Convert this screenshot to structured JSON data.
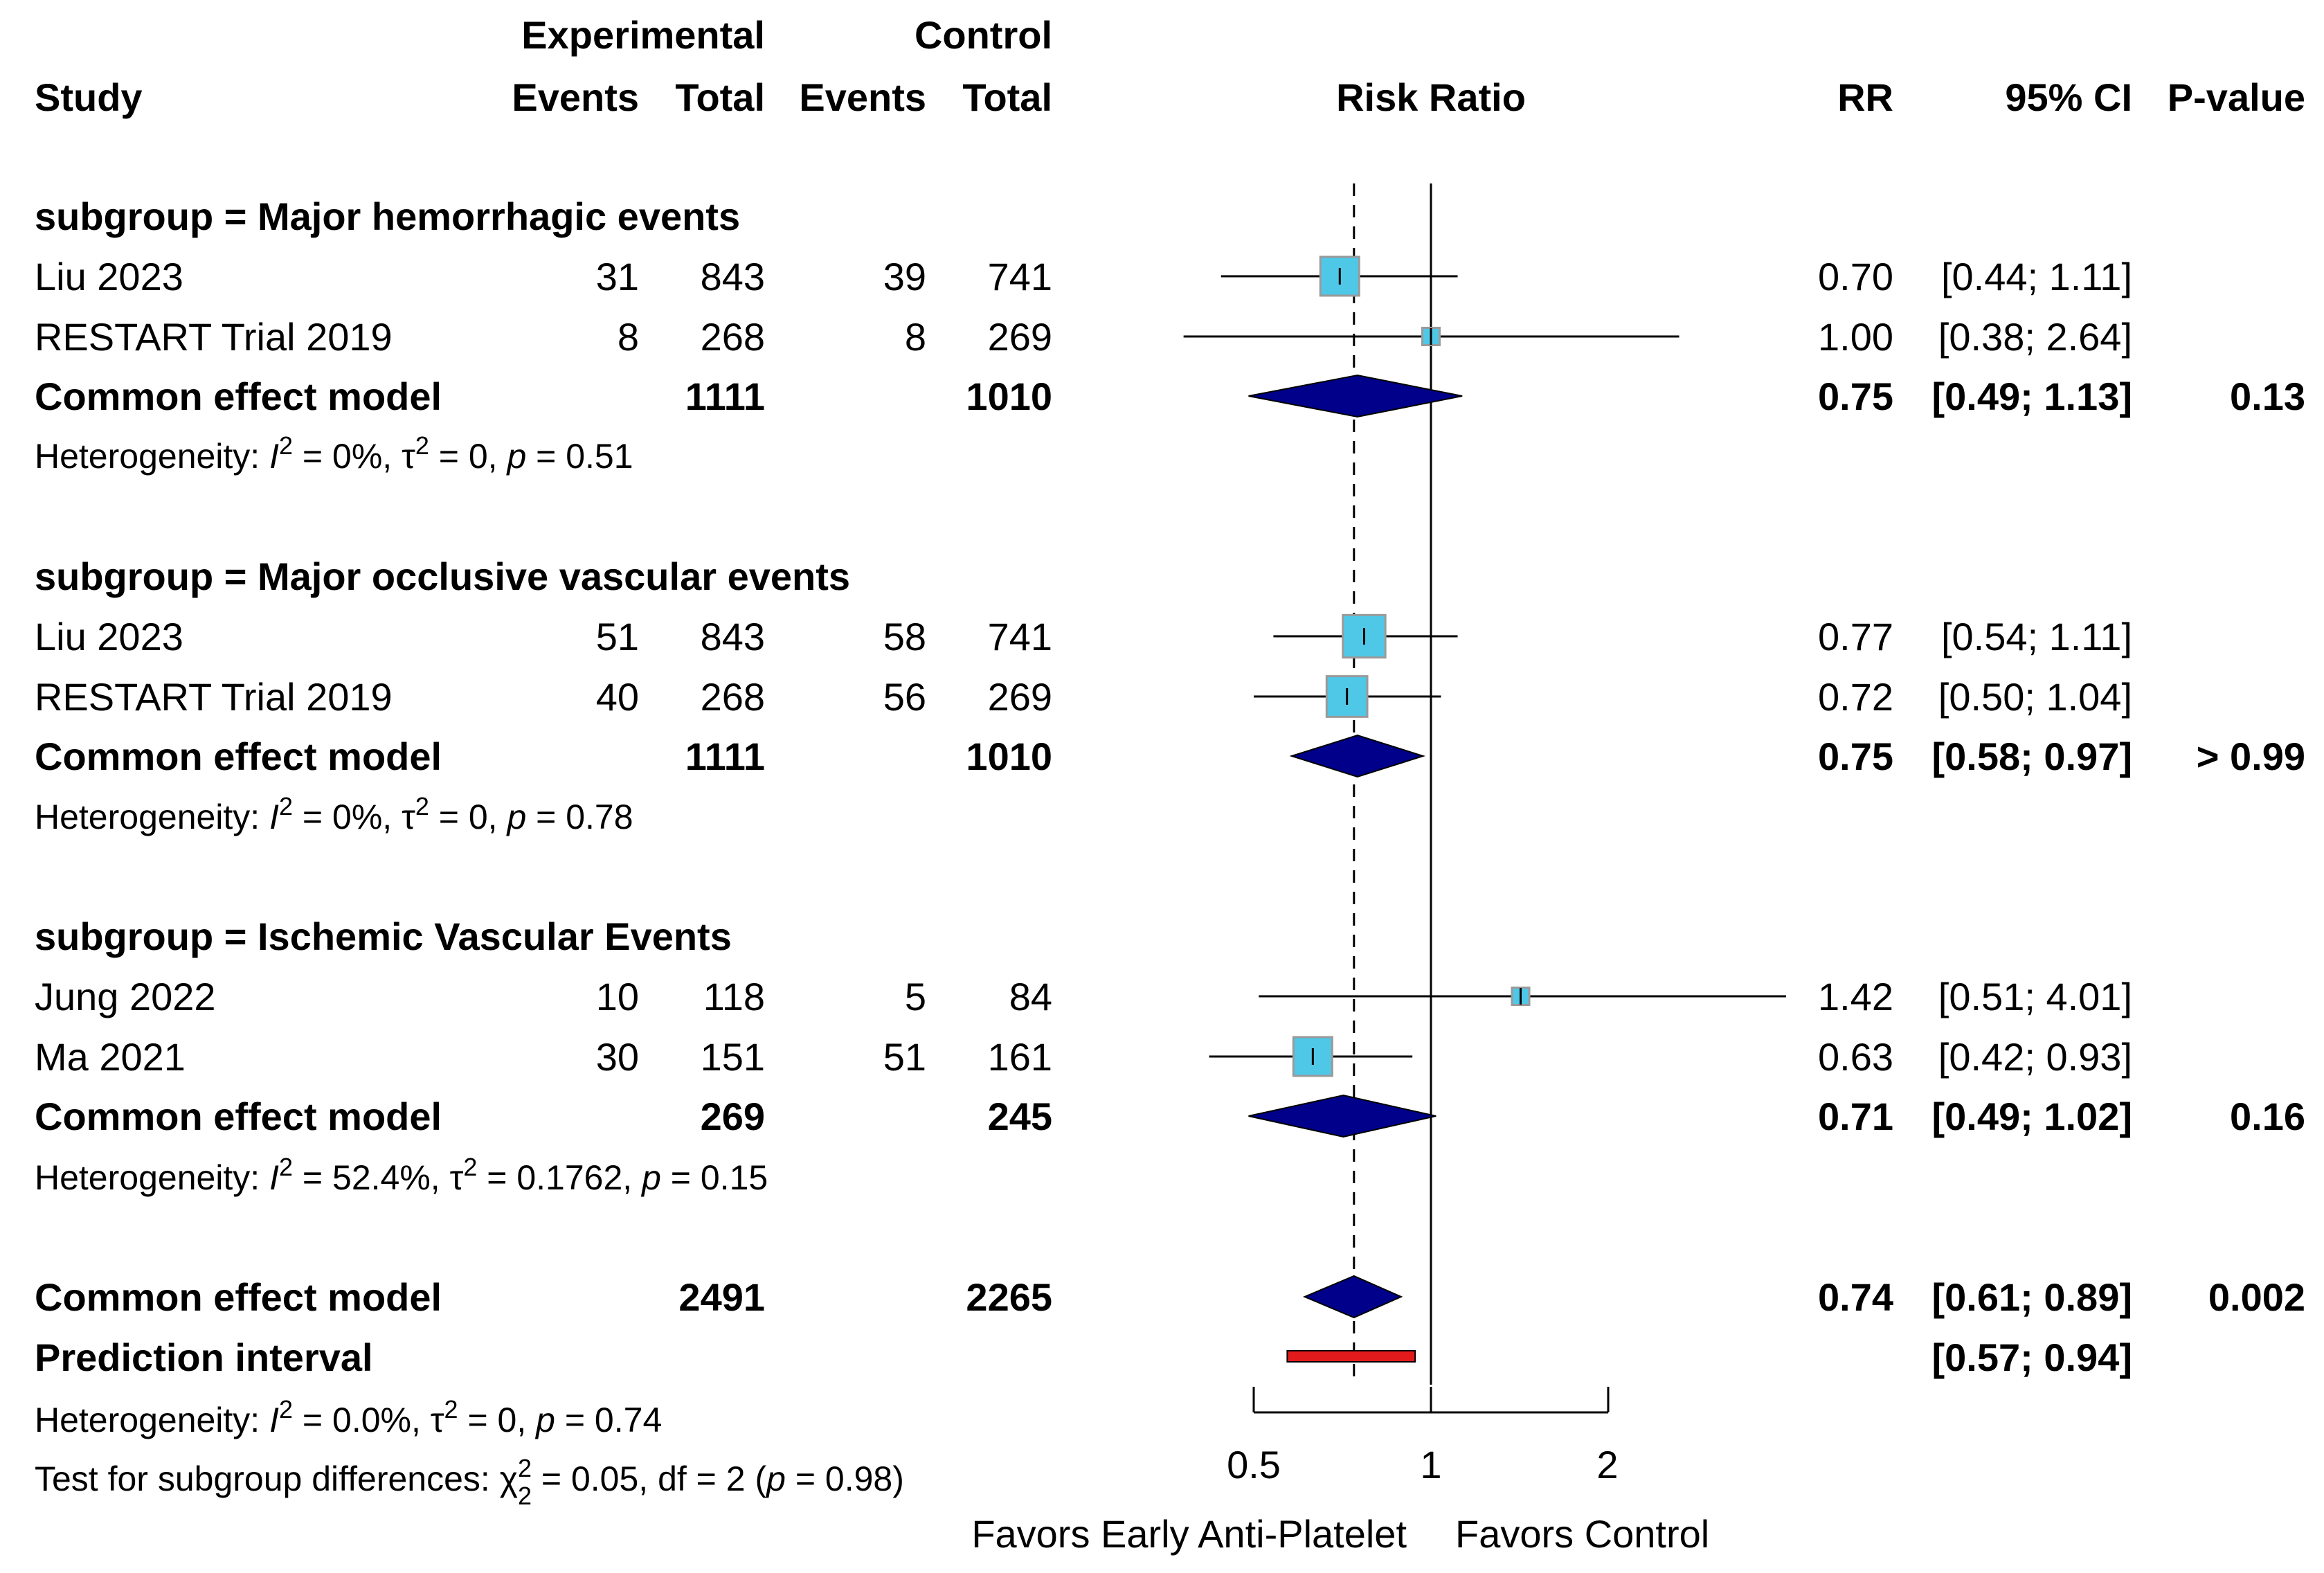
{
  "chart_data": {
    "type": "forest",
    "title": "Risk Ratio",
    "scale": "log",
    "xlim": [
      0.5,
      2
    ],
    "x_ticks": [
      "0.5",
      "1",
      "2"
    ],
    "reference_line": 1,
    "overall_estimate_line": 0.74,
    "labels": {
      "experimental": "Experimental",
      "control": "Control",
      "study": "Study",
      "events": "Events",
      "total": "Total",
      "risk_ratio": "Risk Ratio",
      "rr": "RR",
      "ci": "95% CI",
      "pvalue": "P-value",
      "favors_left": "Favors Early Anti-Platelet",
      "favors_right": "Favors Control"
    },
    "subgroups": [
      {
        "label": "subgroup = Major hemorrhagic events",
        "studies": [
          {
            "name": "Liu 2023",
            "e_events": "31",
            "e_total": "843",
            "c_events": "39",
            "c_total": "741",
            "rr": 0.7,
            "lo": 0.44,
            "hi": 1.11,
            "rr_text": "0.70",
            "ci_text": "[0.44; 1.11]",
            "weight": 1.0
          },
          {
            "name": "RESTART Trial 2019",
            "e_events": "8",
            "e_total": "268",
            "c_events": "8",
            "c_total": "269",
            "rr": 1.0,
            "lo": 0.38,
            "hi": 2.64,
            "rr_text": "1.00",
            "ci_text": "[0.38; 2.64]",
            "weight": 0.2
          }
        ],
        "pooled": {
          "name": "Common effect model",
          "e_total": "1111",
          "c_total": "1010",
          "rr": 0.75,
          "lo": 0.49,
          "hi": 1.13,
          "rr_text": "0.75",
          "ci_text": "[0.49; 1.13]",
          "pvalue": "0.13"
        },
        "heterogeneity": {
          "prefix": "Heterogeneity: ",
          "i2": " = 0%, ",
          "tau2": " = 0, ",
          "p": " = 0.51"
        }
      },
      {
        "label": "subgroup = Major occlusive vascular events",
        "studies": [
          {
            "name": "Liu 2023",
            "e_events": "51",
            "e_total": "843",
            "c_events": "58",
            "c_total": "741",
            "rr": 0.77,
            "lo": 0.54,
            "hi": 1.11,
            "rr_text": "0.77",
            "ci_text": "[0.54; 1.11]",
            "weight": 1.2
          },
          {
            "name": "RESTART Trial 2019",
            "e_events": "40",
            "e_total": "268",
            "c_events": "56",
            "c_total": "269",
            "rr": 0.72,
            "lo": 0.5,
            "hi": 1.04,
            "rr_text": "0.72",
            "ci_text": "[0.50; 1.04]",
            "weight": 1.1
          }
        ],
        "pooled": {
          "name": "Common effect model",
          "e_total": "1111",
          "c_total": "1010",
          "rr": 0.75,
          "lo": 0.58,
          "hi": 0.97,
          "rr_text": "0.75",
          "ci_text": "[0.58; 0.97]",
          "pvalue": "> 0.99"
        },
        "heterogeneity": {
          "prefix": "Heterogeneity: ",
          "i2": " = 0%, ",
          "tau2": " = 0, ",
          "p": " = 0.78"
        }
      },
      {
        "label": "subgroup = Ischemic Vascular Events",
        "studies": [
          {
            "name": "Jung 2022",
            "e_events": "10",
            "e_total": "118",
            "c_events": "5",
            "c_total": "84",
            "rr": 1.42,
            "lo": 0.51,
            "hi": 4.01,
            "rr_text": "1.42",
            "ci_text": "[0.51; 4.01]",
            "weight": 0.2
          },
          {
            "name": "Ma 2021",
            "e_events": "30",
            "e_total": "151",
            "c_events": "51",
            "c_total": "161",
            "rr": 0.63,
            "lo": 0.42,
            "hi": 0.93,
            "rr_text": "0.63",
            "ci_text": "[0.42; 0.93]",
            "weight": 1.0
          }
        ],
        "pooled": {
          "name": "Common effect model",
          "e_total": "269",
          "c_total": "245",
          "rr": 0.71,
          "lo": 0.49,
          "hi": 1.02,
          "rr_text": "0.71",
          "ci_text": "[0.49; 1.02]",
          "pvalue": "0.16"
        },
        "heterogeneity": {
          "prefix": "Heterogeneity: ",
          "i2": " = 52.4%, ",
          "tau2": " = 0.1762, ",
          "p": " = 0.15"
        }
      }
    ],
    "overall": {
      "name": "Common effect model",
      "e_total": "2491",
      "c_total": "2265",
      "rr": 0.74,
      "lo": 0.61,
      "hi": 0.89,
      "rr_text": "0.74",
      "ci_text": "[0.61; 0.89]",
      "pvalue": "0.002"
    },
    "prediction_interval": {
      "name": "Prediction interval",
      "lo": 0.57,
      "hi": 0.94,
      "ci_text": "[0.57; 0.94]"
    },
    "overall_heterogeneity": {
      "prefix": "Heterogeneity: ",
      "i2": " = 0.0%, ",
      "tau2": " = 0, ",
      "p": " = 0.74"
    },
    "subgroup_test": {
      "prefix": "Test for subgroup differences: ",
      "chi": " = 0.05, df = 2 (",
      "p": " = 0.98)"
    },
    "symbols": {
      "I": "I",
      "tau": "τ",
      "chi": "χ",
      "p": "p",
      "sq": "2"
    },
    "colors": {
      "square_fill": "#4fc8e8",
      "square_stroke": "#9a9a9a",
      "diamond": "#00008b",
      "prediction": "#e31a1c",
      "line": "#000000"
    }
  }
}
